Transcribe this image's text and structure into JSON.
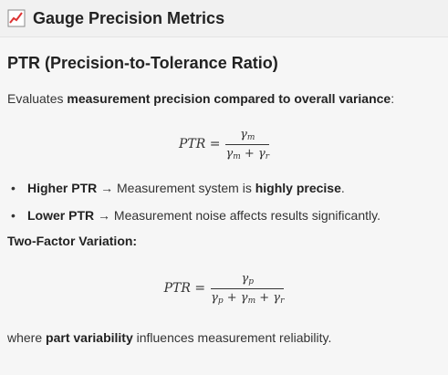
{
  "header": {
    "title": "Gauge Precision Metrics",
    "icon": "chart-icon"
  },
  "section": {
    "heading": "PTR (Precision-to-Tolerance Ratio)",
    "intro_prefix": "Evaluates ",
    "intro_bold": "measurement precision compared to overall variance",
    "intro_suffix": ":"
  },
  "formula1": {
    "lhs": "PTR =",
    "numerator": "γ",
    "numerator_sub": "m",
    "den_a": "γ",
    "den_a_sub": "m",
    "den_b": "γ",
    "den_b_sub": "r"
  },
  "bullets": [
    {
      "bold1": "Higher PTR",
      "arrow": " → ",
      "text": "Measurement system is ",
      "bold2": "highly precise",
      "end": "."
    },
    {
      "bold1": "Lower PTR",
      "arrow": " → ",
      "text": "Measurement noise affects results significantly.",
      "bold2": "",
      "end": ""
    }
  ],
  "two_factor": {
    "heading": "Two-Factor Variation:"
  },
  "formula2": {
    "lhs": "PTR =",
    "numerator": "γ",
    "numerator_sub": "p",
    "den_a": "γ",
    "den_a_sub": "p",
    "den_b": "γ",
    "den_b_sub": "m",
    "den_c": "γ",
    "den_c_sub": "r"
  },
  "closing": {
    "prefix": "where ",
    "bold": "part variability",
    "suffix": " influences measurement reliability."
  }
}
